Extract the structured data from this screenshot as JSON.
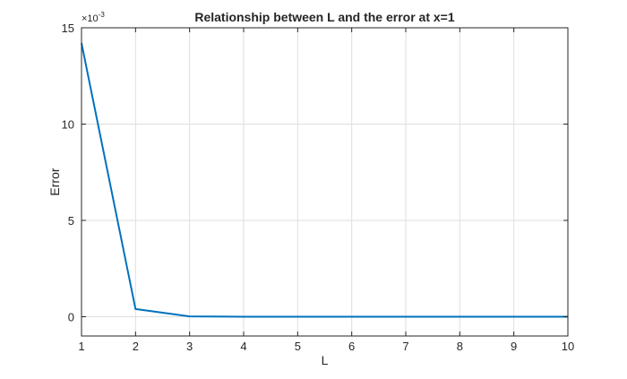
{
  "chart_data": {
    "type": "line",
    "title": "Relationship between L and the error at x=1",
    "xlabel": "L",
    "ylabel": "Error",
    "xlim": [
      1,
      10
    ],
    "ylim": [
      -1,
      15
    ],
    "y_multiplier": "×10",
    "y_multiplier_exponent": "-3",
    "x_ticks": [
      "1",
      "2",
      "3",
      "4",
      "5",
      "6",
      "7",
      "8",
      "9",
      "10"
    ],
    "y_ticks": [
      "0",
      "5",
      "10",
      "15"
    ],
    "grid": true,
    "series": [
      {
        "x": [
          1,
          2,
          3,
          4,
          5,
          6,
          7,
          8,
          9,
          10
        ],
        "values": [
          14.2,
          0.4,
          0.02,
          0.0,
          0.0,
          0.0,
          0.0,
          0.0,
          0.0,
          0.0
        ],
        "color": "#0072bd"
      }
    ]
  }
}
